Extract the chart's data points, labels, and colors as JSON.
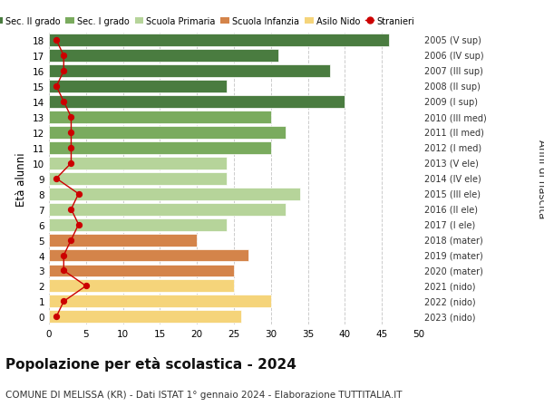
{
  "ages": [
    18,
    17,
    16,
    15,
    14,
    13,
    12,
    11,
    10,
    9,
    8,
    7,
    6,
    5,
    4,
    3,
    2,
    1,
    0
  ],
  "bar_values": [
    46,
    31,
    38,
    24,
    40,
    30,
    32,
    30,
    24,
    24,
    34,
    32,
    24,
    20,
    27,
    25,
    25,
    30,
    26
  ],
  "bar_colors": [
    "#4a7c40",
    "#4a7c40",
    "#4a7c40",
    "#4a7c40",
    "#4a7c40",
    "#7aab5e",
    "#7aab5e",
    "#7aab5e",
    "#b6d49a",
    "#b6d49a",
    "#b6d49a",
    "#b6d49a",
    "#b6d49a",
    "#d4844a",
    "#d4844a",
    "#d4844a",
    "#f5d47a",
    "#f5d47a",
    "#f5d47a"
  ],
  "stranieri_values": [
    1,
    2,
    2,
    1,
    2,
    3,
    3,
    3,
    3,
    1,
    4,
    3,
    4,
    3,
    2,
    2,
    5,
    2,
    1
  ],
  "right_labels": [
    "2005 (V sup)",
    "2006 (IV sup)",
    "2007 (III sup)",
    "2008 (II sup)",
    "2009 (I sup)",
    "2010 (III med)",
    "2011 (II med)",
    "2012 (I med)",
    "2013 (V ele)",
    "2014 (IV ele)",
    "2015 (III ele)",
    "2016 (II ele)",
    "2017 (I ele)",
    "2018 (mater)",
    "2019 (mater)",
    "2020 (mater)",
    "2021 (nido)",
    "2022 (nido)",
    "2023 (nido)"
  ],
  "ylabel": "Età alunni",
  "ylabel2": "Anni di nascita",
  "title": "Popolazione per età scolastica - 2024",
  "subtitle": "COMUNE DI MELISSA (KR) - Dati ISTAT 1° gennaio 2024 - Elaborazione TUTTITALIA.IT",
  "xlim": [
    0,
    50
  ],
  "xticks": [
    0,
    5,
    10,
    15,
    20,
    25,
    30,
    35,
    40,
    45,
    50
  ],
  "legend_entries": [
    "Sec. II grado",
    "Sec. I grado",
    "Scuola Primaria",
    "Scuola Infanzia",
    "Asilo Nido",
    "Stranieri"
  ],
  "legend_colors": [
    "#4a7c40",
    "#7aab5e",
    "#b6d49a",
    "#d4844a",
    "#f5d47a",
    "#cc0000"
  ],
  "bar_height": 0.82,
  "background_color": "#ffffff",
  "grid_color": "#cccccc",
  "stranieri_color": "#cc0000"
}
